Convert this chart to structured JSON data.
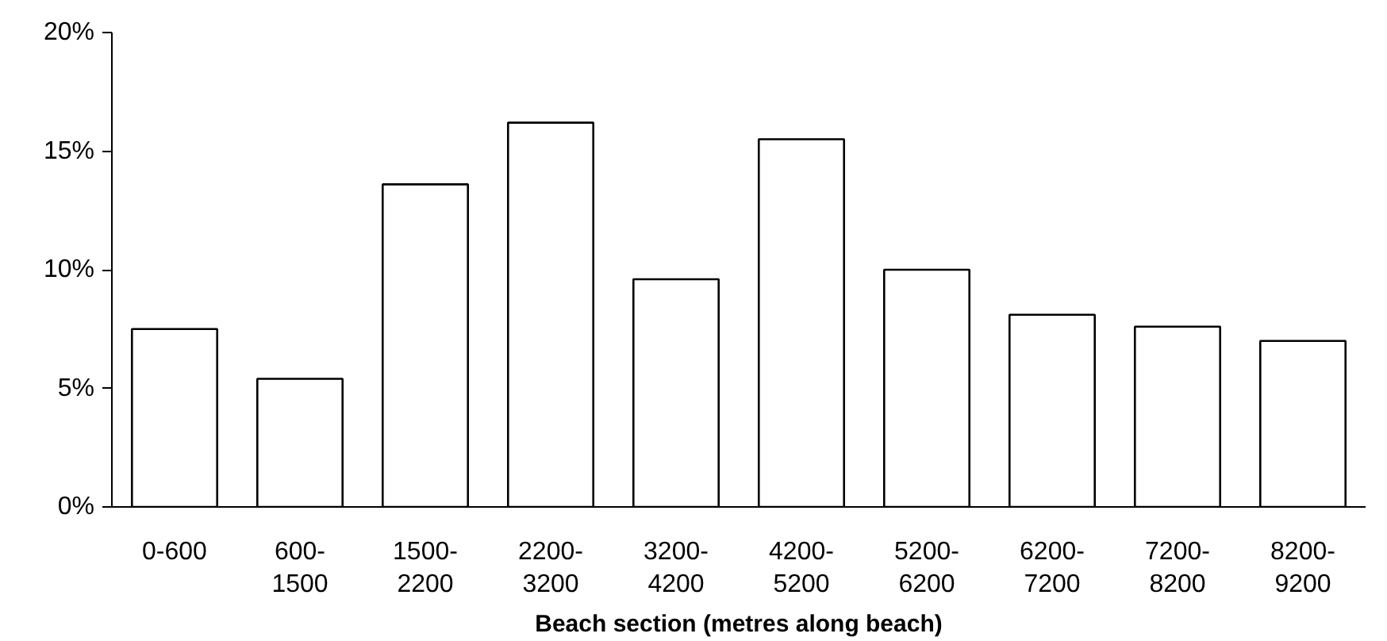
{
  "chart_data": {
    "type": "bar",
    "xlabel": "Beach section (metres along beach)",
    "categories": [
      "0-600",
      "600-1500",
      "1500-2200",
      "2200-3200",
      "3200-4200",
      "4200-5200",
      "5200-6200",
      "6200-7200",
      "7200-8200",
      "8200-9200"
    ],
    "values": [
      7.5,
      5.4,
      13.6,
      16.2,
      9.6,
      15.5,
      10.0,
      8.1,
      7.6,
      7.0
    ],
    "color": "#ffffff",
    "ylim": [
      0,
      20
    ],
    "yticks": [
      {
        "value": 0,
        "label": "0%"
      },
      {
        "value": 5,
        "label": "5%"
      },
      {
        "value": 10,
        "label": "10%"
      },
      {
        "value": 15,
        "label": "15%"
      },
      {
        "value": 20,
        "label": "20%"
      }
    ],
    "grid": false
  }
}
